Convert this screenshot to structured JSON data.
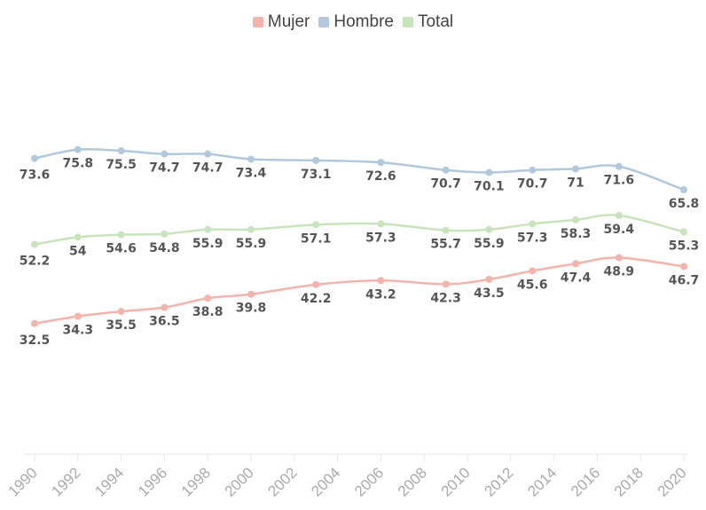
{
  "chart_data": {
    "type": "line",
    "title": "",
    "xlabel": "",
    "ylabel": "",
    "xlim": [
      1990,
      2020
    ],
    "ylim": [
      0,
      100
    ],
    "grid": false,
    "legend_placement": "top-center",
    "x_ticks": [
      "1990",
      "1992",
      "1994",
      "1996",
      "1998",
      "2000",
      "2002",
      "2004",
      "2006",
      "2008",
      "2010",
      "2012",
      "2014",
      "2016",
      "2018",
      "2020"
    ],
    "x": [
      1990,
      1992,
      1994,
      1996,
      1998,
      2000,
      2003,
      2006,
      2009,
      2011,
      2013,
      2015,
      2017,
      2020
    ],
    "series": [
      {
        "name": "Mujer",
        "color": "#f4b4ac",
        "values": [
          32.5,
          34.3,
          35.5,
          36.5,
          38.8,
          39.8,
          42.2,
          43.2,
          42.3,
          43.5,
          45.6,
          47.4,
          48.9,
          46.7
        ]
      },
      {
        "name": "Hombre",
        "color": "#b2c8dd",
        "values": [
          73.6,
          75.8,
          75.5,
          74.7,
          74.7,
          73.4,
          73.1,
          72.6,
          70.7,
          70.1,
          70.7,
          71,
          71.6,
          65.8
        ]
      },
      {
        "name": "Total",
        "color": "#c8e4bc",
        "values": [
          52.2,
          54,
          54.6,
          54.8,
          55.9,
          55.9,
          57.1,
          57.3,
          55.7,
          55.9,
          57.3,
          58.3,
          59.4,
          55.3
        ]
      }
    ]
  }
}
